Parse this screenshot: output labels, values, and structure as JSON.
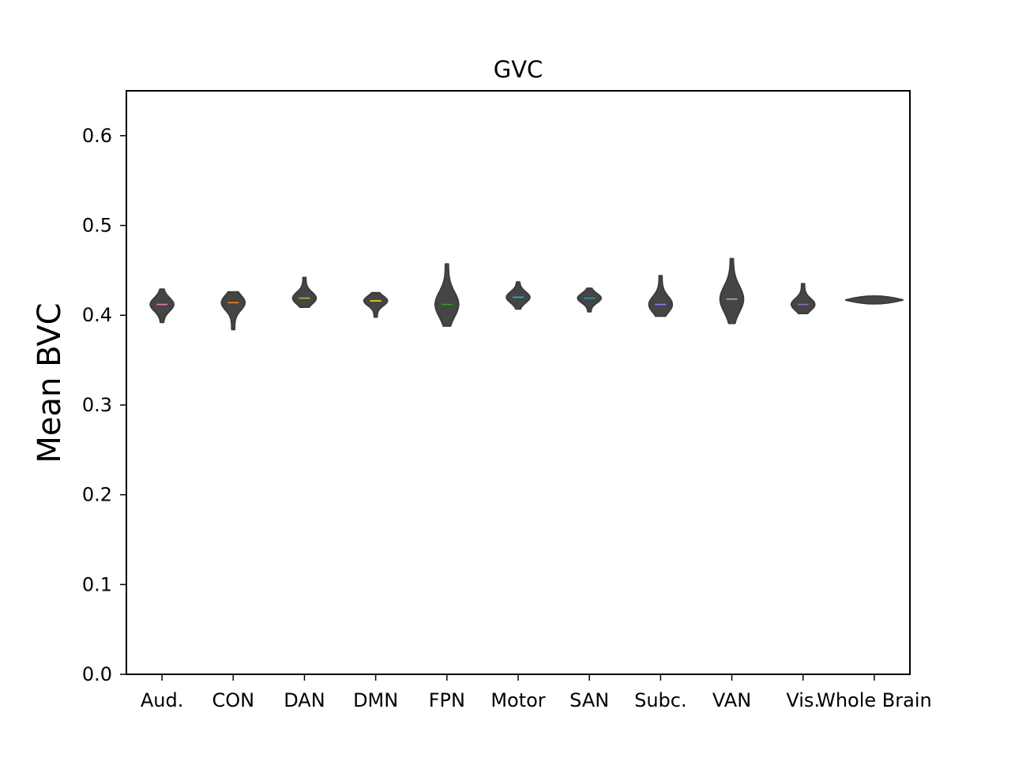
{
  "chart_data": {
    "type": "violin",
    "title": "GVC",
    "xlabel": "",
    "ylabel": "Mean BVC",
    "ylim": [
      0.0,
      0.65
    ],
    "yticks": [
      "0.0",
      "0.1",
      "0.2",
      "0.3",
      "0.4",
      "0.5",
      "0.6"
    ],
    "grid": false,
    "categories": [
      "Aud.",
      "CON",
      "DAN",
      "DMN",
      "FPN",
      "Motor",
      "SAN",
      "Subc.",
      "VAN",
      "Vis.",
      "Whole Brain"
    ],
    "series": [
      {
        "category": "Aud.",
        "min": 0.392,
        "max": 0.429,
        "median": 0.412,
        "color": "#e377c2"
      },
      {
        "category": "CON",
        "min": 0.384,
        "max": 0.426,
        "median": 0.414,
        "color": "#ff7f0e"
      },
      {
        "category": "DAN",
        "min": 0.409,
        "max": 0.442,
        "median": 0.419,
        "color": "#bcbd22"
      },
      {
        "category": "DMN",
        "min": 0.398,
        "max": 0.425,
        "median": 0.416,
        "color": "#ffdd00"
      },
      {
        "category": "FPN",
        "min": 0.388,
        "max": 0.457,
        "median": 0.412,
        "color": "#2ca02c"
      },
      {
        "category": "Motor",
        "min": 0.407,
        "max": 0.437,
        "median": 0.42,
        "color": "#17becf"
      },
      {
        "category": "SAN",
        "min": 0.404,
        "max": 0.43,
        "median": 0.419,
        "color": "#1f9fbf"
      },
      {
        "category": "Subc.",
        "min": 0.399,
        "max": 0.444,
        "median": 0.412,
        "color": "#7f7fff"
      },
      {
        "category": "VAN",
        "min": 0.391,
        "max": 0.463,
        "median": 0.418,
        "color": "#aaaaaa"
      },
      {
        "category": "Vis.",
        "min": 0.402,
        "max": 0.435,
        "median": 0.412,
        "color": "#9467bd"
      },
      {
        "category": "Whole Brain",
        "min": 0.415,
        "max": 0.42,
        "median": 0.417,
        "color": "#3c3c3c"
      }
    ]
  }
}
